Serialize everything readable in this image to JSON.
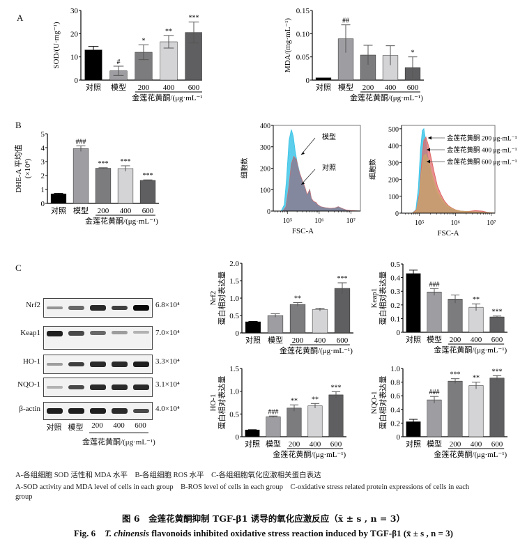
{
  "panel_letters": {
    "A": "A",
    "B": "B",
    "C": "C"
  },
  "groups_label": "金莲花黄酮/(μg·mL⁻¹)",
  "chart_data": [
    {
      "id": "sod",
      "type": "bar",
      "ylabel": "SOD/(U·mg⁻¹)",
      "xlabel": "金莲花黄酮/(μg·mL⁻¹)",
      "categories": [
        "对照",
        "模型",
        "200",
        "400",
        "600"
      ],
      "values": [
        13,
        4,
        12,
        16.5,
        20.5
      ],
      "errors": [
        1.5,
        2,
        3.2,
        2.7,
        4.5
      ],
      "significance": [
        "",
        "#",
        "*",
        "**",
        "***"
      ],
      "colors": [
        "#000000",
        "#9e9ea2",
        "#7c7c7e",
        "#d4d4d6",
        "#5f5f61"
      ],
      "ylim": [
        0,
        30
      ],
      "yticks": [
        0,
        10,
        20,
        30
      ],
      "ytick_labels": [
        "0",
        "10",
        "20",
        "30"
      ]
    },
    {
      "id": "mda",
      "type": "bar",
      "ylabel": "MDA/(mg·mL⁻¹)",
      "xlabel": "金莲花黄酮/(μg·mL⁻¹)",
      "categories": [
        "对照",
        "模型",
        "200",
        "400",
        "600"
      ],
      "values": [
        0.005,
        0.089,
        0.054,
        0.053,
        0.027
      ],
      "errors": [
        0,
        0.03,
        0.021,
        0.021,
        0.023
      ],
      "significance": [
        "",
        "##",
        "",
        "",
        "*"
      ],
      "colors": [
        "#000000",
        "#9e9ea2",
        "#7c7c7e",
        "#d4d4d6",
        "#5f5f61"
      ],
      "ylim": [
        0,
        0.15
      ],
      "yticks": [
        0,
        0.05,
        0.1,
        0.15
      ],
      "ytick_labels": [
        "0",
        "0.05",
        "0.10",
        "0.15"
      ]
    },
    {
      "id": "dhe",
      "type": "bar",
      "ylabel": "DHE-A 平均值",
      "ylabel2": "(×10⁴)",
      "xlabel": "金莲花黄酮/(μg·mL⁻¹)",
      "categories": [
        "对照",
        "模型",
        "200",
        "400",
        "600"
      ],
      "values": [
        0.68,
        3.93,
        2.52,
        2.5,
        1.65
      ],
      "errors": [
        0.04,
        0.2,
        0.04,
        0.2,
        0.04
      ],
      "significance": [
        "",
        "###",
        "***",
        "***",
        "***"
      ],
      "colors": [
        "#000000",
        "#9e9ea2",
        "#7c7c7e",
        "#d4d4d6",
        "#5f5f61"
      ],
      "ylim": [
        0,
        5
      ],
      "yticks": [
        0,
        1,
        2,
        3,
        4,
        5
      ],
      "ytick_labels": [
        "0",
        "1",
        "2",
        "3",
        "4",
        "5"
      ]
    },
    {
      "id": "flow1",
      "type": "area",
      "ylabel": "细胞数",
      "xlabel": "FSC-A",
      "ylim": [
        0,
        400
      ],
      "yticks": [
        0,
        100,
        200,
        300,
        400
      ],
      "ytick_labels": [
        "0",
        "100",
        "200",
        "300",
        "400"
      ],
      "xtick_labels": [
        "10⁵",
        "10⁶",
        "10⁷"
      ],
      "xticks_log": [
        5,
        6,
        7
      ],
      "xlim_log": [
        4.55,
        7.3
      ],
      "annotations": [
        "模型",
        "对照"
      ],
      "series": [
        {
          "name": "模型",
          "color": "#3fc6e8",
          "x_log": [
            4.55,
            4.8,
            4.9,
            4.97,
            5.05,
            5.12,
            5.18,
            5.24,
            5.3,
            5.38,
            5.45,
            5.55,
            5.62,
            5.7,
            5.75,
            5.82,
            5.9,
            5.95,
            6.05,
            6.2,
            6.35,
            6.5,
            6.6,
            6.72,
            6.85,
            7.0,
            7.3
          ],
          "y": [
            0,
            0,
            30,
            150,
            330,
            380,
            350,
            280,
            230,
            180,
            140,
            100,
            70,
            100,
            60,
            40,
            30,
            25,
            20,
            15,
            12,
            14,
            20,
            12,
            5,
            2,
            0
          ]
        },
        {
          "name": "对照",
          "color": "#e06a6a",
          "x_log": [
            4.55,
            4.85,
            4.95,
            5.05,
            5.12,
            5.2,
            5.28,
            5.35,
            5.45,
            5.55,
            5.62,
            5.7,
            5.75,
            5.82,
            5.9,
            5.95,
            6.05,
            6.2,
            6.35,
            6.5,
            6.6,
            6.72,
            6.85,
            7.0,
            7.3
          ],
          "y": [
            0,
            0,
            20,
            120,
            220,
            255,
            240,
            190,
            150,
            110,
            75,
            100,
            60,
            45,
            40,
            30,
            20,
            15,
            12,
            14,
            20,
            12,
            5,
            2,
            0
          ]
        }
      ]
    },
    {
      "id": "flow2",
      "type": "area",
      "ylabel": "细胞数",
      "xlabel": "FSC-A",
      "ylim": [
        0,
        520
      ],
      "yticks": [
        0,
        100,
        200,
        300,
        400,
        500
      ],
      "ytick_labels": [
        "0",
        "100",
        "200",
        "300",
        "400",
        "500"
      ],
      "xtick_labels": [
        "10⁵",
        "10⁶",
        "10⁷"
      ],
      "xticks_log": [
        5,
        6,
        7
      ],
      "xlim_log": [
        4.5,
        7.1
      ],
      "annotations": [
        "金莲花黄酮 200 μg·mL⁻¹",
        "金莲花黄酮 400 μg·mL⁻¹",
        "金莲花黄酮 600 μg·mL⁻¹"
      ],
      "series": [
        {
          "name": "金莲花黄酮 200 μg·mL⁻¹",
          "color": "#3fc6e8",
          "x_log": [
            4.5,
            4.8,
            4.9,
            4.97,
            5.03,
            5.08,
            5.12,
            5.18,
            5.25,
            5.35,
            5.45,
            5.55,
            5.65,
            5.75,
            5.85,
            5.95,
            6.1,
            6.3,
            6.5,
            6.7,
            6.9,
            7.1
          ],
          "y": [
            0,
            0,
            20,
            150,
            380,
            490,
            500,
            420,
            300,
            200,
            130,
            90,
            60,
            40,
            25,
            18,
            12,
            10,
            8,
            6,
            3,
            0
          ]
        },
        {
          "name": "金莲花黄酮 400 μg·mL⁻¹",
          "color": "#e06a6a",
          "x_log": [
            4.5,
            4.8,
            4.92,
            5.0,
            5.06,
            5.12,
            5.18,
            5.25,
            5.32,
            5.4,
            5.5,
            5.6,
            5.7,
            5.8,
            5.9,
            6.0,
            6.15,
            6.35,
            6.55,
            6.75,
            6.9,
            7.1
          ],
          "y": [
            0,
            0,
            20,
            120,
            300,
            430,
            450,
            400,
            330,
            250,
            160,
            110,
            70,
            45,
            30,
            20,
            12,
            10,
            15,
            12,
            4,
            0
          ]
        },
        {
          "name": "金莲花黄酮 600 μg·mL⁻¹",
          "color": "#c9a46a",
          "x_log": [
            4.5,
            4.8,
            4.92,
            5.0,
            5.06,
            5.12,
            5.18,
            5.25,
            5.32,
            5.4,
            5.5,
            5.6,
            5.7,
            5.8,
            5.9,
            6.0,
            6.15,
            6.35,
            6.55,
            6.75,
            6.9,
            7.1
          ],
          "y": [
            0,
            0,
            15,
            100,
            250,
            340,
            350,
            310,
            250,
            190,
            130,
            90,
            60,
            40,
            28,
            18,
            12,
            9,
            8,
            6,
            3,
            0
          ]
        }
      ]
    },
    {
      "id": "nrf2",
      "type": "bar",
      "ylabel": "Nrf2",
      "ylabel2": "蛋白相对表达量",
      "xlabel": "金莲花黄酮/(μg·mL⁻¹)",
      "categories": [
        "对照",
        "模型",
        "200",
        "400",
        "600"
      ],
      "values": [
        0.32,
        0.5,
        0.82,
        0.67,
        1.28
      ],
      "errors": [
        0.01,
        0.05,
        0.05,
        0.04,
        0.16
      ],
      "significance": [
        "",
        "",
        "**",
        "",
        "***"
      ],
      "colors": [
        "#000000",
        "#9e9ea2",
        "#7c7c7e",
        "#d4d4d6",
        "#5f5f61"
      ],
      "ylim": [
        0,
        2.0
      ],
      "yticks": [
        0,
        0.5,
        1.0,
        1.5,
        2.0
      ],
      "ytick_labels": [
        "0",
        "0.5",
        "1.0",
        "1.5",
        "2.0"
      ]
    },
    {
      "id": "keap1",
      "type": "bar",
      "ylabel": "Keap1",
      "ylabel2": "蛋白相对表达量",
      "xlabel": "金莲花黄酮/(μg·mL⁻¹)",
      "categories": [
        "对照",
        "模型",
        "200",
        "400",
        "600"
      ],
      "values": [
        0.43,
        0.295,
        0.243,
        0.183,
        0.112
      ],
      "errors": [
        0.025,
        0.025,
        0.03,
        0.025,
        0.007
      ],
      "significance": [
        "",
        "###",
        "",
        "**",
        "***"
      ],
      "colors": [
        "#000000",
        "#9e9ea2",
        "#7c7c7e",
        "#d4d4d6",
        "#5f5f61"
      ],
      "ylim": [
        0,
        0.5
      ],
      "yticks": [
        0,
        0.1,
        0.2,
        0.3,
        0.4,
        0.5
      ],
      "ytick_labels": [
        "0",
        "0.1",
        "0.2",
        "0.3",
        "0.4",
        "0.5"
      ]
    },
    {
      "id": "ho1",
      "type": "bar",
      "ylabel": "HO-1",
      "ylabel2": "蛋白相对表达量",
      "xlabel": "金莲花黄酮/(μg·mL⁻¹)",
      "categories": [
        "对照",
        "模型",
        "200",
        "400",
        "600"
      ],
      "values": [
        0.15,
        0.44,
        0.63,
        0.68,
        0.92
      ],
      "errors": [
        0.005,
        0.015,
        0.07,
        0.05,
        0.07
      ],
      "significance": [
        "",
        "###",
        "**",
        "**",
        "***"
      ],
      "colors": [
        "#000000",
        "#9e9ea2",
        "#7c7c7e",
        "#d4d4d6",
        "#5f5f61"
      ],
      "ylim": [
        0,
        1.5
      ],
      "yticks": [
        0,
        0.5,
        1.0,
        1.5
      ],
      "ytick_labels": [
        "0",
        "0.5",
        "1.0",
        "1.5"
      ]
    },
    {
      "id": "nqo1",
      "type": "bar",
      "ylabel": "NQO-1",
      "ylabel2": "蛋白相对表达量",
      "xlabel": "金莲花黄酮/(μg·mL⁻¹)",
      "categories": [
        "对照",
        "模型",
        "200",
        "400",
        "600"
      ],
      "values": [
        0.22,
        0.54,
        0.815,
        0.75,
        0.86
      ],
      "errors": [
        0.035,
        0.05,
        0.035,
        0.05,
        0.035
      ],
      "significance": [
        "",
        "###",
        "***",
        "**",
        "***"
      ],
      "colors": [
        "#000000",
        "#9e9ea2",
        "#7c7c7e",
        "#d4d4d6",
        "#5f5f61"
      ],
      "ylim": [
        0,
        1.0
      ],
      "yticks": [
        0,
        0.2,
        0.4,
        0.6,
        0.8,
        1.0
      ],
      "ytick_labels": [
        "0",
        "0.2",
        "0.4",
        "0.6",
        "0.8",
        "1.0"
      ]
    }
  ],
  "western_blot": {
    "rows": [
      {
        "protein": "Nrf2",
        "mw": "6.8×10⁴",
        "intensity": [
          0.35,
          0.55,
          0.85,
          0.75,
          1.0
        ]
      },
      {
        "protein": "Keap1",
        "mw": "7.0×10⁴",
        "intensity": [
          0.9,
          0.7,
          0.55,
          0.3,
          0.2
        ]
      },
      {
        "protein": "HO-1",
        "mw": "3.3×10⁴",
        "intensity": [
          0.3,
          0.75,
          0.85,
          0.85,
          0.9
        ]
      },
      {
        "protein": "NQO-1",
        "mw": "3.1×10⁴",
        "intensity": [
          0.2,
          0.7,
          0.85,
          0.85,
          0.85
        ]
      },
      {
        "protein": "β-actin",
        "mw": "4.0×10⁴",
        "intensity": [
          0.9,
          0.9,
          0.9,
          0.85,
          0.7
        ]
      }
    ],
    "lanes": [
      "对照",
      "模型",
      "200",
      "400",
      "600"
    ],
    "xlabel": "金莲花黄酮/(μg·mL⁻¹)"
  },
  "caption": {
    "line1": "A-各组细胞 SOD 活性和 MDA 水平　B-各组细胞 ROS 水平　C-各组细胞氧化应激相关蛋白表达",
    "line2": "A-SOD activity and MDA level of cells in each group　B-ROS level of cells in each group　C-oxidative stress related protein expressions of cells in each",
    "line3": "group",
    "title_zh": "图 6　金莲花黄酮抑制 TGF-β1 诱导的氧化应激反应（x̄ ± s , n = 3）",
    "title_en_prefix": "Fig. 6　",
    "title_en_italic": "T. chinensis",
    "title_en_rest": " flavonoids inhibited oxidative stress reaction induced by TGF-β1 (x̄ ± s , n = 3)"
  }
}
